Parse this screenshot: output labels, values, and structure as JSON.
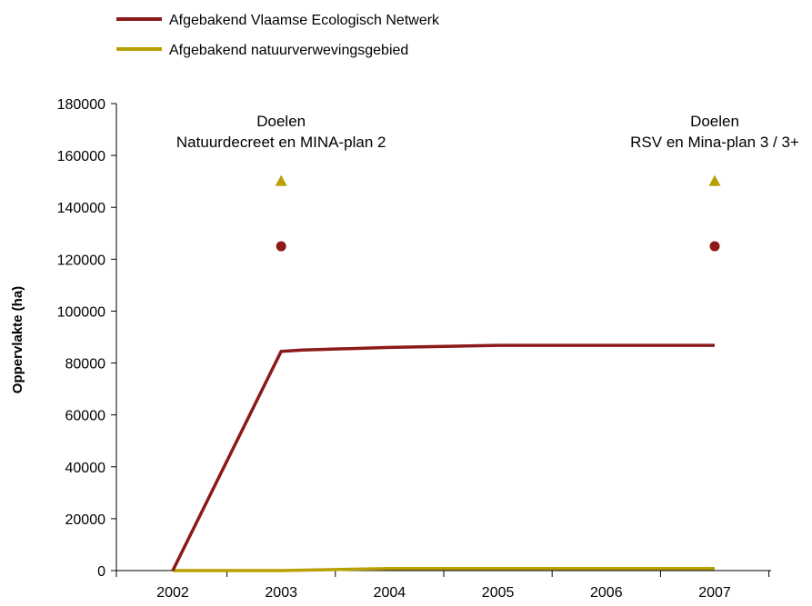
{
  "chart_data": {
    "type": "line",
    "title": "",
    "xlabel": "",
    "ylabel": "Oppervlakte (ha)",
    "x": [
      2002,
      2003,
      2004,
      2005,
      2006,
      2007
    ],
    "xlim": [
      2002,
      2007
    ],
    "ylim": [
      0,
      180000
    ],
    "yticks": [
      0,
      20000,
      40000,
      60000,
      80000,
      100000,
      120000,
      140000,
      160000,
      180000
    ],
    "grid": false,
    "legend_position": "top-left",
    "series": [
      {
        "name": "Afgebakend Vlaamse Ecologisch Netwerk",
        "color": "#8b1a1a",
        "points": [
          [
            2002,
            0
          ],
          [
            2003,
            84500
          ],
          [
            2003.2,
            85000
          ],
          [
            2004,
            86000
          ],
          [
            2005,
            86800
          ],
          [
            2006,
            86800
          ],
          [
            2007,
            86800
          ]
        ]
      },
      {
        "name": "Afgebakend natuurverwevingsgebied",
        "color": "#b8a000",
        "points": [
          [
            2002,
            0
          ],
          [
            2003,
            0
          ],
          [
            2004,
            800
          ],
          [
            2005,
            800
          ],
          [
            2006,
            800
          ],
          [
            2007,
            800
          ]
        ]
      }
    ],
    "target_markers": [
      {
        "series": "Afgebakend Vlaamse Ecologisch Netwerk",
        "shape": "circle",
        "color": "#8b1a1a",
        "x": 2003,
        "y": 125000
      },
      {
        "series": "Afgebakend Vlaamse Ecologisch Netwerk",
        "shape": "circle",
        "color": "#8b1a1a",
        "x": 2007,
        "y": 125000
      },
      {
        "series": "Afgebakend natuurverwevingsgebied",
        "shape": "triangle",
        "color": "#b8a000",
        "x": 2003,
        "y": 150000
      },
      {
        "series": "Afgebakend natuurverwevingsgebied",
        "shape": "triangle",
        "color": "#b8a000",
        "x": 2007,
        "y": 150000
      }
    ],
    "annotations": [
      {
        "x": 2003,
        "lines": [
          "Doelen",
          "Natuurdecreet en MINA-plan 2"
        ]
      },
      {
        "x": 2007,
        "lines": [
          "Doelen",
          "RSV en Mina-plan 3 / 3+"
        ]
      }
    ]
  }
}
